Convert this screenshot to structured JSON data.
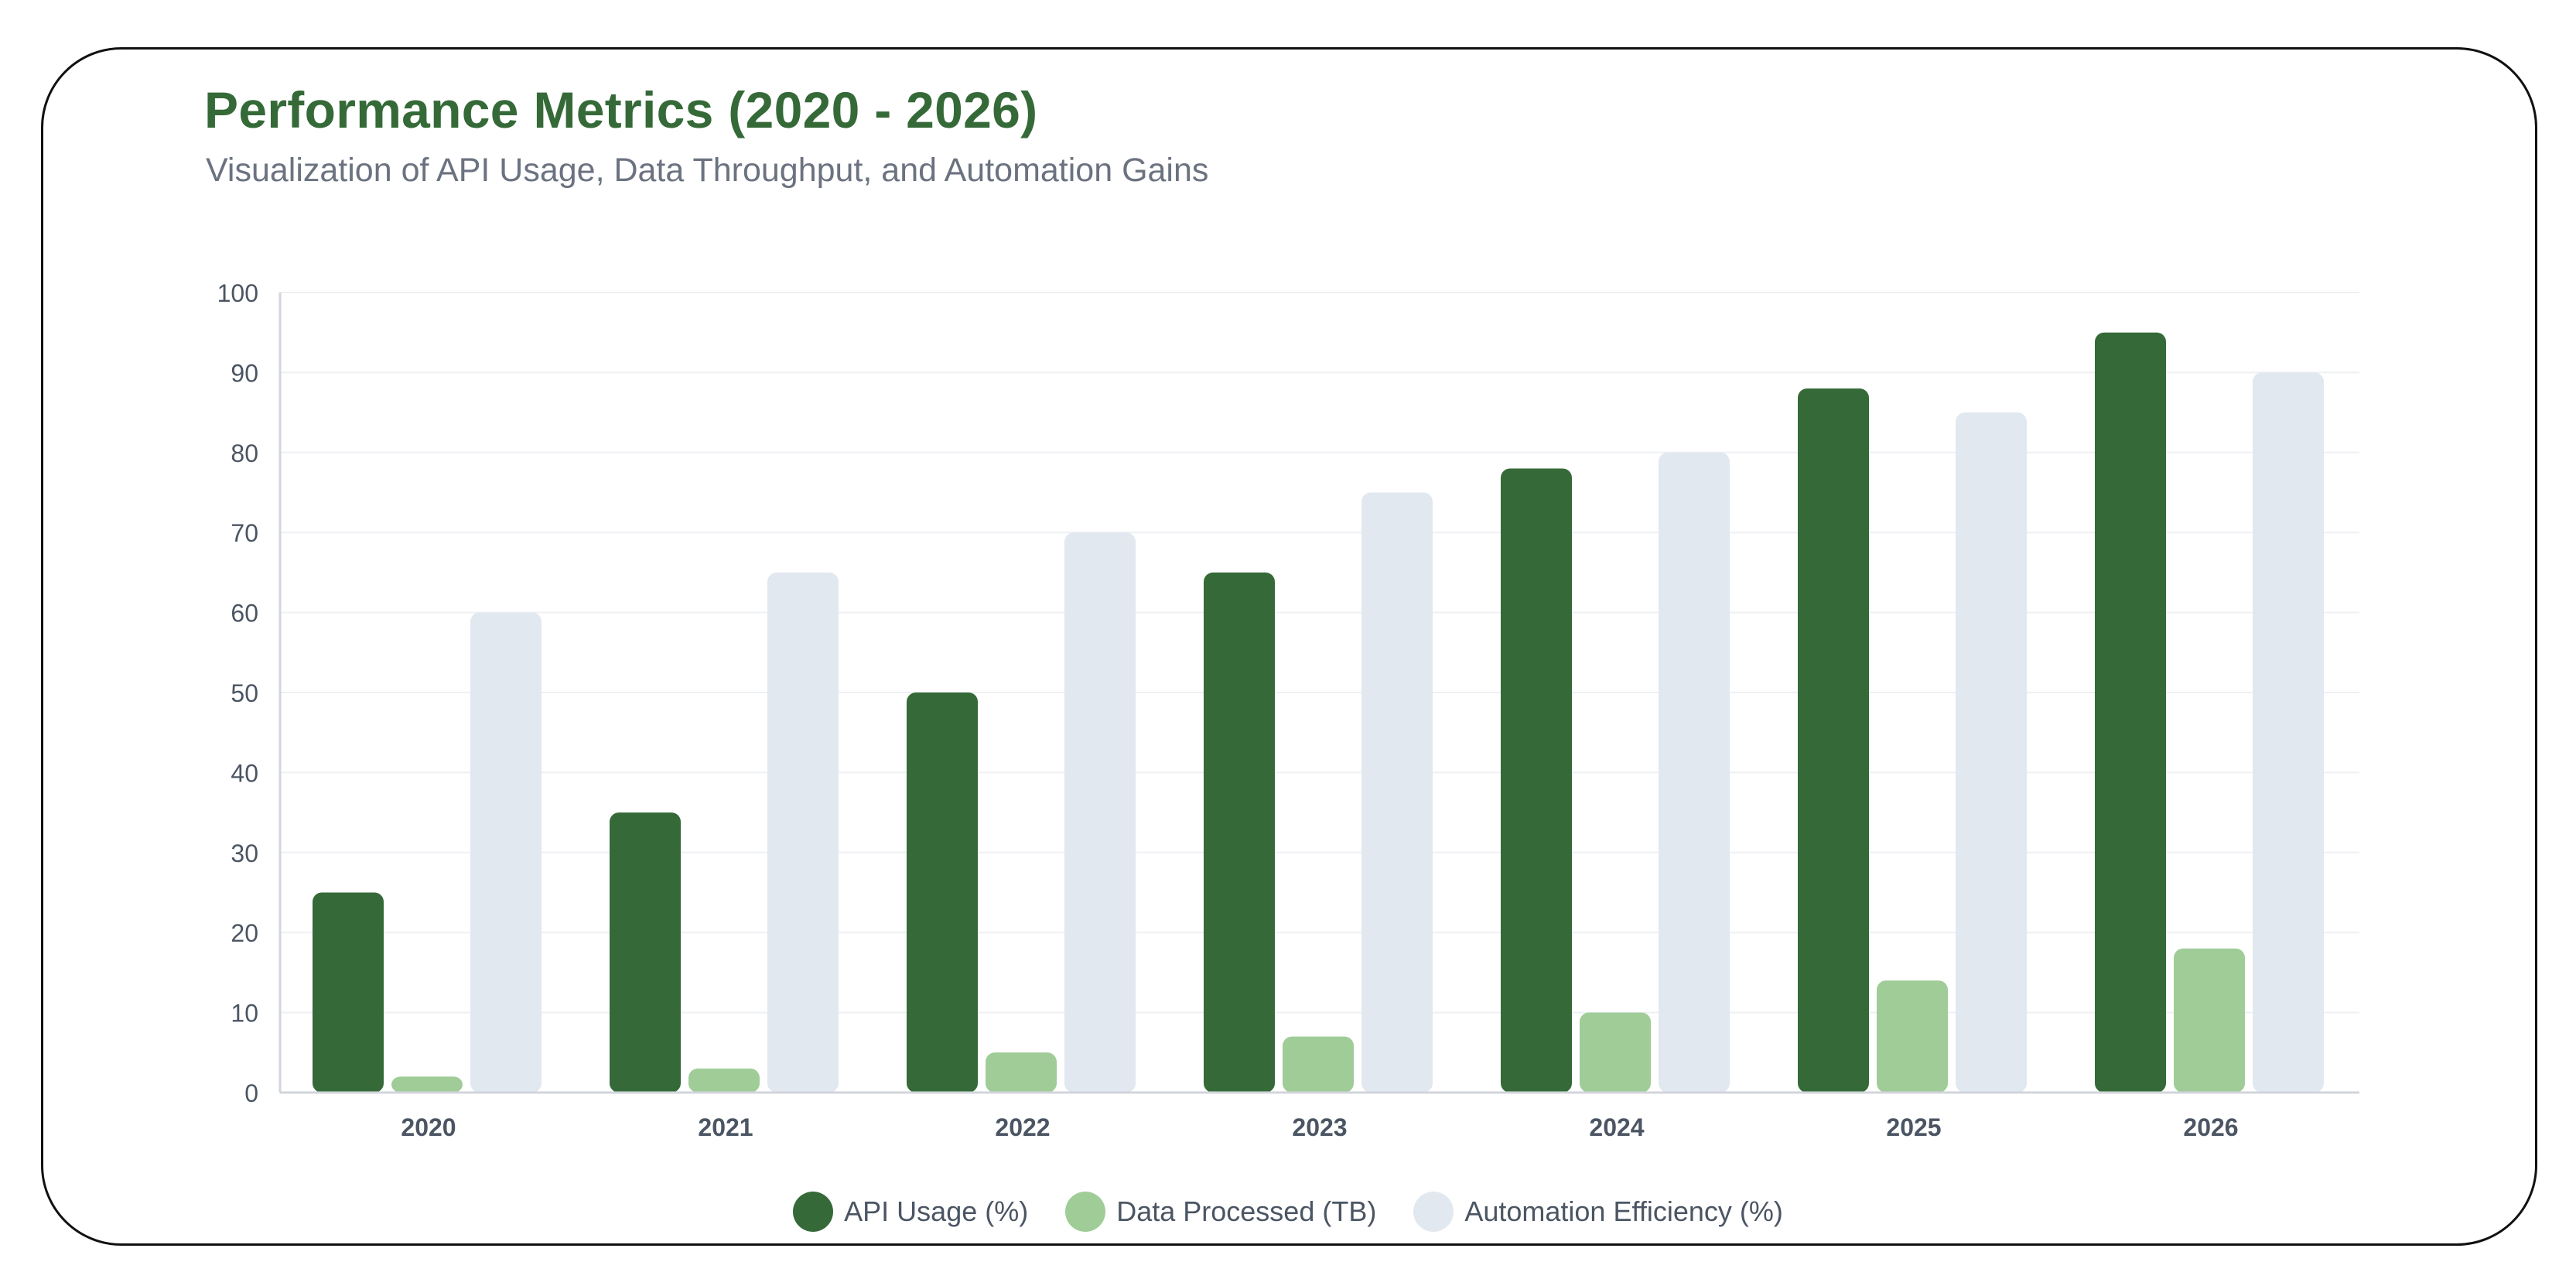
{
  "chart_data": {
    "type": "bar",
    "title": "Performance Metrics (2020 - 2026)",
    "subtitle": "Visualization of API Usage, Data Throughput, and Automation Gains",
    "categories": [
      "2020",
      "2021",
      "2022",
      "2023",
      "2024",
      "2025",
      "2026"
    ],
    "series": [
      {
        "name": "API Usage (%)",
        "color": "#356a38",
        "values": [
          25,
          35,
          50,
          65,
          78,
          88,
          95
        ]
      },
      {
        "name": "Data Processed (TB)",
        "color": "#a0cc98",
        "values": [
          2,
          3,
          5,
          7,
          10,
          14,
          18
        ]
      },
      {
        "name": "Automation Efficiency (%)",
        "color": "#e2e8f0",
        "values": [
          60,
          65,
          70,
          75,
          80,
          85,
          90
        ]
      }
    ],
    "yticks": [
      "0",
      "10",
      "20",
      "30",
      "40",
      "50",
      "60",
      "70",
      "80",
      "90",
      "100"
    ],
    "ylim": [
      0,
      100
    ],
    "xlabel": "",
    "ylabel": "",
    "grid": true,
    "legend_position": "bottom-center"
  }
}
